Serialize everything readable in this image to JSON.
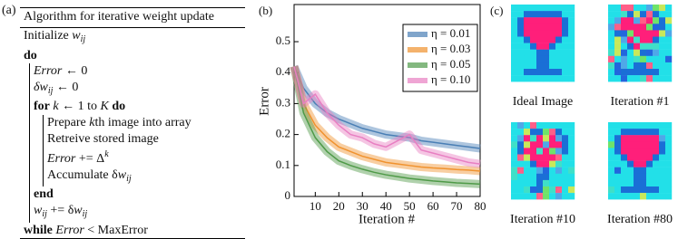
{
  "panel_a": {
    "label": "(a)",
    "title": "Algorithm for iterative weight update",
    "lines": [
      [
        "Initialize ",
        "w",
        "ij"
      ],
      [
        "do"
      ],
      [
        "Error",
        " ← 0"
      ],
      [
        "δw",
        "ij",
        " ← 0"
      ],
      [
        "for",
        " k",
        " ← 1 to ",
        "K",
        " do"
      ],
      [
        "Prepare ",
        "k",
        "th image into array"
      ],
      [
        "Retreive stored image"
      ],
      [
        "Error",
        " += Δ",
        "k"
      ],
      [
        "Accumulate δ",
        "w",
        "ij"
      ],
      [
        "end"
      ],
      [
        "w",
        "ij",
        " += δ",
        "w",
        "ij"
      ],
      [
        "while",
        " Error",
        " < MaxError"
      ]
    ]
  },
  "chart_data": {
    "type": "line",
    "panel_label": "(b)",
    "x_label": "Iteration #",
    "y_label": "Error",
    "x": [
      1,
      5,
      10,
      15,
      20,
      25,
      30,
      35,
      40,
      45,
      50,
      55,
      60,
      65,
      70,
      75,
      80
    ],
    "series": [
      {
        "name": "η = 0.01",
        "color": "#4a7fb5",
        "values": [
          0.42,
          0.35,
          0.3,
          0.27,
          0.25,
          0.235,
          0.22,
          0.21,
          0.2,
          0.195,
          0.19,
          0.18,
          0.175,
          0.17,
          0.165,
          0.16,
          0.155
        ]
      },
      {
        "name": "η = 0.03",
        "color": "#f0922e",
        "values": [
          0.42,
          0.3,
          0.23,
          0.19,
          0.16,
          0.145,
          0.13,
          0.12,
          0.11,
          0.105,
          0.1,
          0.095,
          0.092,
          0.09,
          0.087,
          0.085,
          0.082
        ]
      },
      {
        "name": "η = 0.05",
        "color": "#4f9a48",
        "values": [
          0.42,
          0.27,
          0.19,
          0.145,
          0.115,
          0.1,
          0.088,
          0.078,
          0.07,
          0.064,
          0.058,
          0.054,
          0.05,
          0.047,
          0.044,
          0.042,
          0.04
        ]
      },
      {
        "name": "η = 0.10",
        "color": "#e87fc2",
        "values": [
          0.42,
          0.3,
          0.33,
          0.27,
          0.23,
          0.2,
          0.19,
          0.17,
          0.16,
          0.18,
          0.2,
          0.15,
          0.14,
          0.13,
          0.12,
          0.11,
          0.105
        ]
      }
    ],
    "xlim": [
      1,
      80
    ],
    "xticks": [
      10,
      20,
      30,
      40,
      50,
      60,
      70,
      80
    ],
    "ylim": [
      0,
      0.62
    ],
    "yticks": [
      0,
      0.1,
      0.2,
      0.3,
      0.4,
      0.5
    ],
    "legend": "upper right"
  },
  "panel_c": {
    "label": "(c)",
    "captions": [
      "Ideal Image",
      "Iteration #1",
      "Iteration #10",
      "Iteration #80"
    ]
  }
}
